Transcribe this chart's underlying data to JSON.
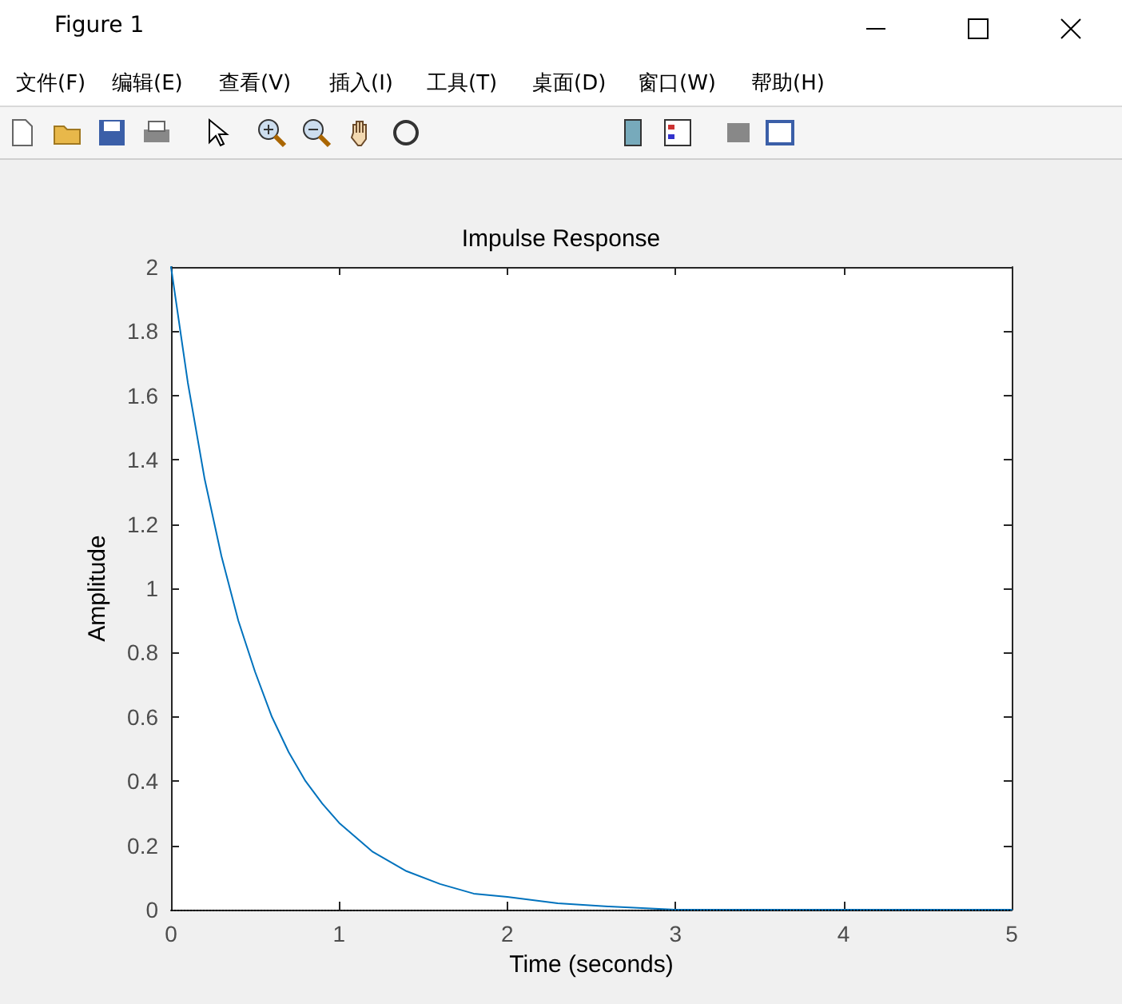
{
  "chart_data": {
    "type": "line",
    "title": "Impulse Response",
    "xlabel": "Time (seconds)",
    "ylabel": "Amplitude",
    "annotations": [
      "Figure 1",
      "文件(F)",
      "编辑(E)",
      "查看(V)",
      "插入(I)",
      "工具(T)",
      "桌面(D)",
      "窗口(W)",
      "帮助(H)"
    ],
    "x": [
      0,
      0.1,
      0.2,
      0.3,
      0.4,
      0.5,
      0.6,
      0.7,
      0.8,
      0.9,
      1,
      1.2,
      1.4,
      1.6,
      1.8,
      2,
      2.3,
      2.6,
      3,
      3.5,
      4,
      5
    ],
    "series": [
      {
        "color": "#0072bd",
        "values": [
          2,
          1.64,
          1.34,
          1.1,
          0.9,
          0.74,
          0.6,
          0.49,
          0.4,
          0.33,
          0.27,
          0.18,
          0.12,
          0.08,
          0.05,
          0.04,
          0.02,
          0.01,
          0,
          0,
          0,
          0
        ]
      }
    ],
    "xlim": [
      0,
      5
    ],
    "xticks": [
      0,
      1,
      2,
      3,
      4,
      5
    ],
    "ylim": [
      0,
      2
    ],
    "yticks": [
      0,
      0.2,
      0.4,
      0.6,
      0.8,
      1,
      1.2,
      1.4,
      1.6,
      1.8,
      2
    ],
    "ref_lines": [
      {
        "axis": "y",
        "value": 0,
        "color": "#000000",
        "line_style": "dotted"
      }
    ],
    "grid": false,
    "marker": "none",
    "line_style": "solid"
  }
}
